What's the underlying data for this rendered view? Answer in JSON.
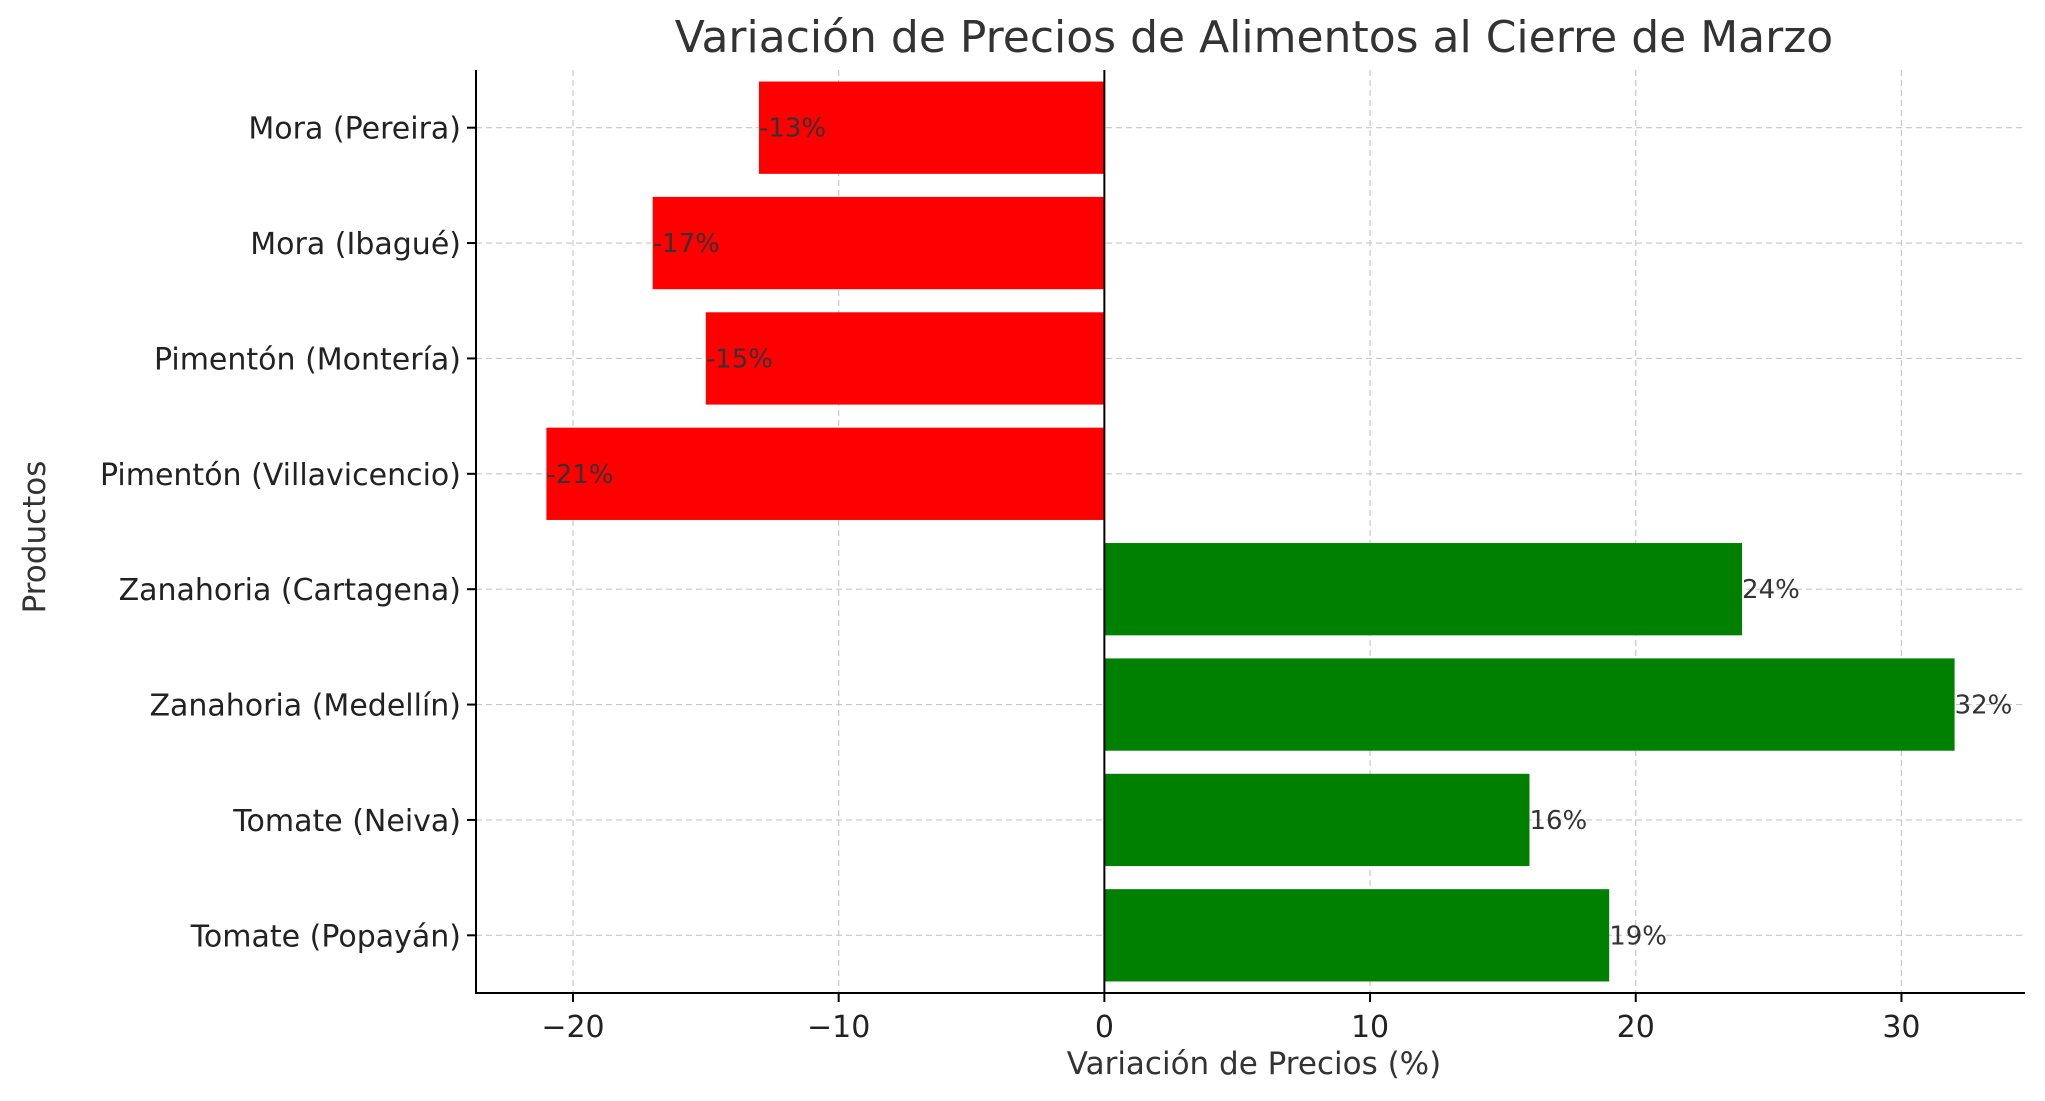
{
  "chart_data": {
    "type": "bar",
    "orientation": "horizontal",
    "title": "Variación de Precios de Alimentos al Cierre de Marzo",
    "xlabel": "Variación de Precios (%)",
    "ylabel": "Productos",
    "categories": [
      "Tomate (Popayán)",
      "Tomate (Neiva)",
      "Zanahoria (Medellín)",
      "Zanahoria (Cartagena)",
      "Pimentón (Villavicencio)",
      "Pimentón (Montería)",
      "Mora (Ibagué)",
      "Mora (Pereira)"
    ],
    "values": [
      19,
      16,
      32,
      24,
      -21,
      -15,
      -17,
      -13
    ],
    "data_labels": [
      "19%",
      "16%",
      "32%",
      "24%",
      "-21%",
      "-15%",
      "-17%",
      "-13%"
    ],
    "xlim": [
      -23.65,
      34.65
    ],
    "xticks": [
      -20,
      -10,
      0,
      10,
      20,
      30
    ],
    "xtick_labels": [
      "−20",
      "−10",
      "0",
      "10",
      "20",
      "30"
    ],
    "colors": {
      "positive": "#008000",
      "negative": "#ff0000"
    },
    "grid": true,
    "legend": "none"
  }
}
